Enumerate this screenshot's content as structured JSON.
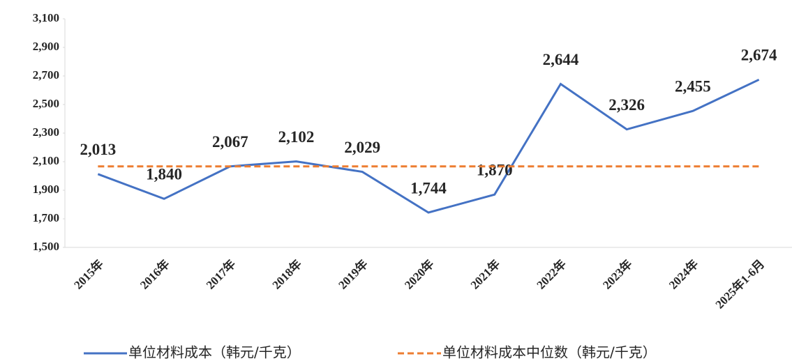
{
  "chart_data": {
    "type": "line",
    "categories": [
      "2015年",
      "2016年",
      "2017年",
      "2018年",
      "2019年",
      "2020年",
      "2021年",
      "2022年",
      "2023年",
      "2024年",
      "2025年1-6月"
    ],
    "series": [
      {
        "name": "单位材料成本（韩元/千克）",
        "color": "#4472c4",
        "dashed": false,
        "values": [
          2013,
          1840,
          2067,
          2102,
          2029,
          1744,
          1870,
          2644,
          2326,
          2455,
          2674
        ],
        "value_labels": [
          "2,013",
          "1,840",
          "2,067",
          "2,102",
          "2,029",
          "1,744",
          "1,870",
          "2,644",
          "2,326",
          "2,455",
          "2,674"
        ]
      },
      {
        "name": "单位材料成本中位数（韩元/千克）",
        "color": "#ed7d31",
        "dashed": true,
        "values": [
          2067,
          2067,
          2067,
          2067,
          2067,
          2067,
          2067,
          2067,
          2067,
          2067,
          2067
        ]
      }
    ],
    "ylim": [
      1500,
      3100
    ],
    "yticks": [
      {
        "value": 1500,
        "label": "1,500"
      },
      {
        "value": 1700,
        "label": "1,700"
      },
      {
        "value": 1900,
        "label": "1,900"
      },
      {
        "value": 2100,
        "label": "2,100"
      },
      {
        "value": 2300,
        "label": "2,300"
      },
      {
        "value": 2500,
        "label": "2,500"
      },
      {
        "value": 2700,
        "label": "2,700"
      },
      {
        "value": 2900,
        "label": "2,900"
      },
      {
        "value": 3100,
        "label": "3,100"
      }
    ],
    "grid": false,
    "legend": "bottom"
  }
}
